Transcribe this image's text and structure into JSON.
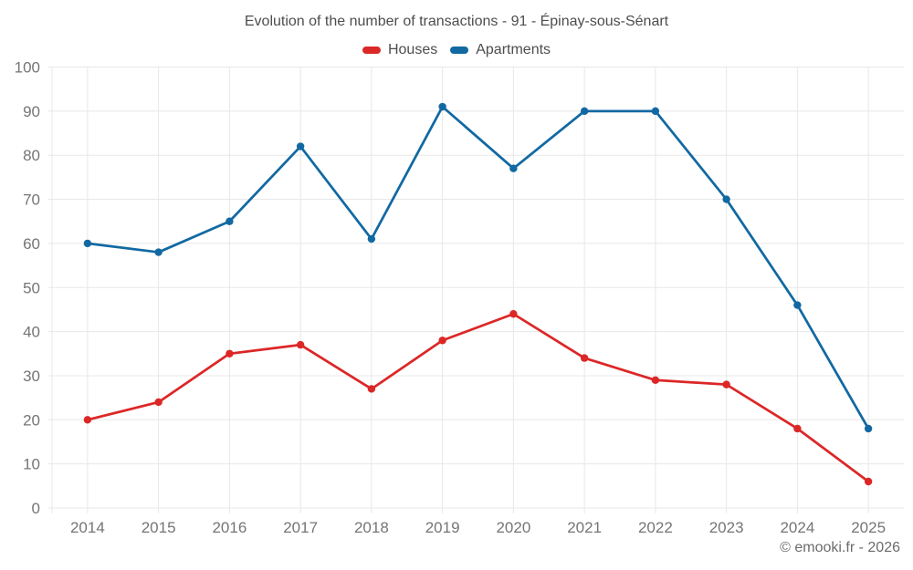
{
  "header": {
    "title": "Evolution of the number of transactions - 91 - Épinay-sous-Sénart"
  },
  "footer": {
    "credit": "© emooki.fr - 2026"
  },
  "chart_data": {
    "type": "line",
    "title": "Evolution of the number of transactions - 91 - Épinay-sous-Sénart",
    "categories": [
      "2014",
      "2015",
      "2016",
      "2017",
      "2018",
      "2019",
      "2020",
      "2021",
      "2022",
      "2023",
      "2024",
      "2025"
    ],
    "series": [
      {
        "name": "Houses",
        "color": "#dc2727",
        "values": [
          20,
          24,
          35,
          37,
          27,
          38,
          44,
          34,
          29,
          28,
          18,
          6
        ]
      },
      {
        "name": "Apartments",
        "color": "#1269a2",
        "values": [
          60,
          58,
          65,
          82,
          61,
          91,
          77,
          90,
          90,
          70,
          46,
          18
        ]
      }
    ],
    "xlabel": "",
    "ylabel": "",
    "ylim": [
      0,
      100
    ],
    "ytick_step": 10,
    "grid": true,
    "legend_position": "top",
    "legend_entries": [
      "Houses",
      "Apartments"
    ],
    "marker": "circle"
  },
  "colors": {
    "grid": "#e8e8e8",
    "axis_text": "#757575",
    "title_text": "#4d4d4d",
    "footer_text": "#6b6b6b",
    "background": "#ffffff"
  }
}
